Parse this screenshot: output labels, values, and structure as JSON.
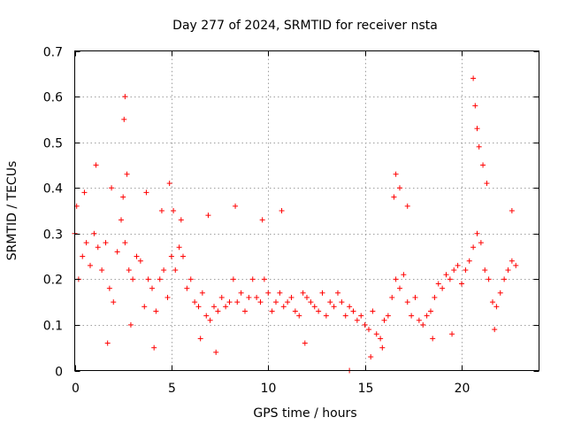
{
  "chart_data": {
    "type": "scatter",
    "title": "Day 277 of 2024, SRMTID for receiver nsta",
    "xlabel": "GPS time / hours",
    "ylabel": "SRMTID / TECUs",
    "xlim": [
      0,
      24
    ],
    "ylim": [
      0,
      0.7
    ],
    "xticks": [
      0,
      5,
      10,
      15,
      20
    ],
    "xtick_labels": [
      "0",
      "5",
      "10",
      "15",
      "20"
    ],
    "yticks": [
      0,
      0.1,
      0.2,
      0.3,
      0.4,
      0.5,
      0.6,
      0.7
    ],
    "ytick_labels": [
      "0",
      "0.1",
      "0.2",
      "0.3",
      "0.4",
      "0.5",
      "0.6",
      "0.7"
    ],
    "grid": true,
    "marker": "+",
    "series": [
      {
        "name": "nsta",
        "color": "#ff0000",
        "x": [
          0.0,
          0.2,
          0.4,
          0.6,
          0.8,
          1.0,
          1.2,
          1.4,
          1.6,
          1.8,
          2.0,
          2.2,
          2.4,
          2.6,
          2.8,
          3.0,
          3.2,
          3.4,
          3.6,
          3.8,
          4.0,
          4.2,
          4.4,
          4.6,
          4.8,
          5.0,
          5.2,
          5.4,
          5.6,
          5.8,
          6.0,
          6.2,
          6.4,
          6.6,
          6.8,
          7.0,
          7.2,
          7.4,
          7.6,
          7.8,
          8.0,
          8.2,
          8.4,
          8.6,
          8.8,
          9.0,
          9.2,
          9.4,
          9.6,
          9.8,
          10.0,
          10.2,
          10.4,
          10.6,
          10.8,
          11.0,
          11.2,
          11.4,
          11.6,
          11.8,
          12.0,
          12.2,
          12.4,
          12.6,
          12.8,
          13.0,
          13.2,
          13.4,
          13.6,
          13.8,
          14.0,
          14.2,
          14.4,
          14.6,
          14.8,
          15.0,
          15.2,
          15.4,
          15.6,
          15.8,
          16.0,
          16.2,
          16.4,
          16.6,
          16.8,
          17.0,
          17.2,
          17.4,
          17.6,
          17.8,
          18.0,
          18.2,
          18.4,
          18.6,
          18.8,
          19.0,
          19.2,
          19.4,
          19.6,
          19.8,
          20.0,
          20.2,
          20.4,
          20.6,
          20.8,
          21.0,
          21.2,
          21.4,
          21.6,
          21.8,
          22.0,
          22.2,
          22.4,
          22.6,
          22.8,
          14.2,
          0.1,
          0.5,
          1.1,
          1.9,
          2.5,
          2.55,
          2.6,
          2.7,
          3.7,
          4.5,
          4.9,
          5.1,
          5.5,
          6.9,
          8.3,
          9.7,
          10.7,
          16.5,
          16.6,
          16.8,
          17.2,
          20.6,
          20.7,
          20.8,
          20.9,
          21.1,
          21.3,
          22.6,
          1.7,
          2.9,
          4.1,
          6.5,
          7.3,
          11.9,
          15.3,
          15.9,
          18.5,
          19.5,
          21.7
        ],
        "y": [
          0.3,
          0.2,
          0.25,
          0.28,
          0.23,
          0.3,
          0.27,
          0.22,
          0.28,
          0.18,
          0.15,
          0.26,
          0.33,
          0.28,
          0.22,
          0.2,
          0.25,
          0.24,
          0.14,
          0.2,
          0.18,
          0.13,
          0.2,
          0.22,
          0.16,
          0.25,
          0.22,
          0.27,
          0.25,
          0.18,
          0.2,
          0.15,
          0.14,
          0.17,
          0.12,
          0.11,
          0.14,
          0.13,
          0.16,
          0.14,
          0.15,
          0.2,
          0.15,
          0.17,
          0.13,
          0.16,
          0.2,
          0.16,
          0.15,
          0.2,
          0.17,
          0.13,
          0.15,
          0.17,
          0.14,
          0.15,
          0.16,
          0.13,
          0.12,
          0.17,
          0.16,
          0.15,
          0.14,
          0.13,
          0.17,
          0.12,
          0.15,
          0.14,
          0.17,
          0.15,
          0.12,
          0.14,
          0.13,
          0.11,
          0.12,
          0.1,
          0.09,
          0.13,
          0.08,
          0.07,
          0.11,
          0.12,
          0.16,
          0.2,
          0.18,
          0.21,
          0.15,
          0.12,
          0.16,
          0.11,
          0.1,
          0.12,
          0.13,
          0.16,
          0.19,
          0.18,
          0.21,
          0.2,
          0.22,
          0.23,
          0.19,
          0.22,
          0.24,
          0.27,
          0.3,
          0.28,
          0.22,
          0.2,
          0.15,
          0.14,
          0.17,
          0.2,
          0.22,
          0.24,
          0.23,
          0.0,
          0.36,
          0.39,
          0.45,
          0.4,
          0.38,
          0.55,
          0.6,
          0.43,
          0.39,
          0.35,
          0.41,
          0.35,
          0.33,
          0.34,
          0.36,
          0.33,
          0.35,
          0.38,
          0.43,
          0.4,
          0.36,
          0.64,
          0.58,
          0.53,
          0.49,
          0.45,
          0.41,
          0.35,
          0.06,
          0.1,
          0.05,
          0.07,
          0.04,
          0.06,
          0.03,
          0.05,
          0.07,
          0.08,
          0.09
        ]
      }
    ]
  }
}
